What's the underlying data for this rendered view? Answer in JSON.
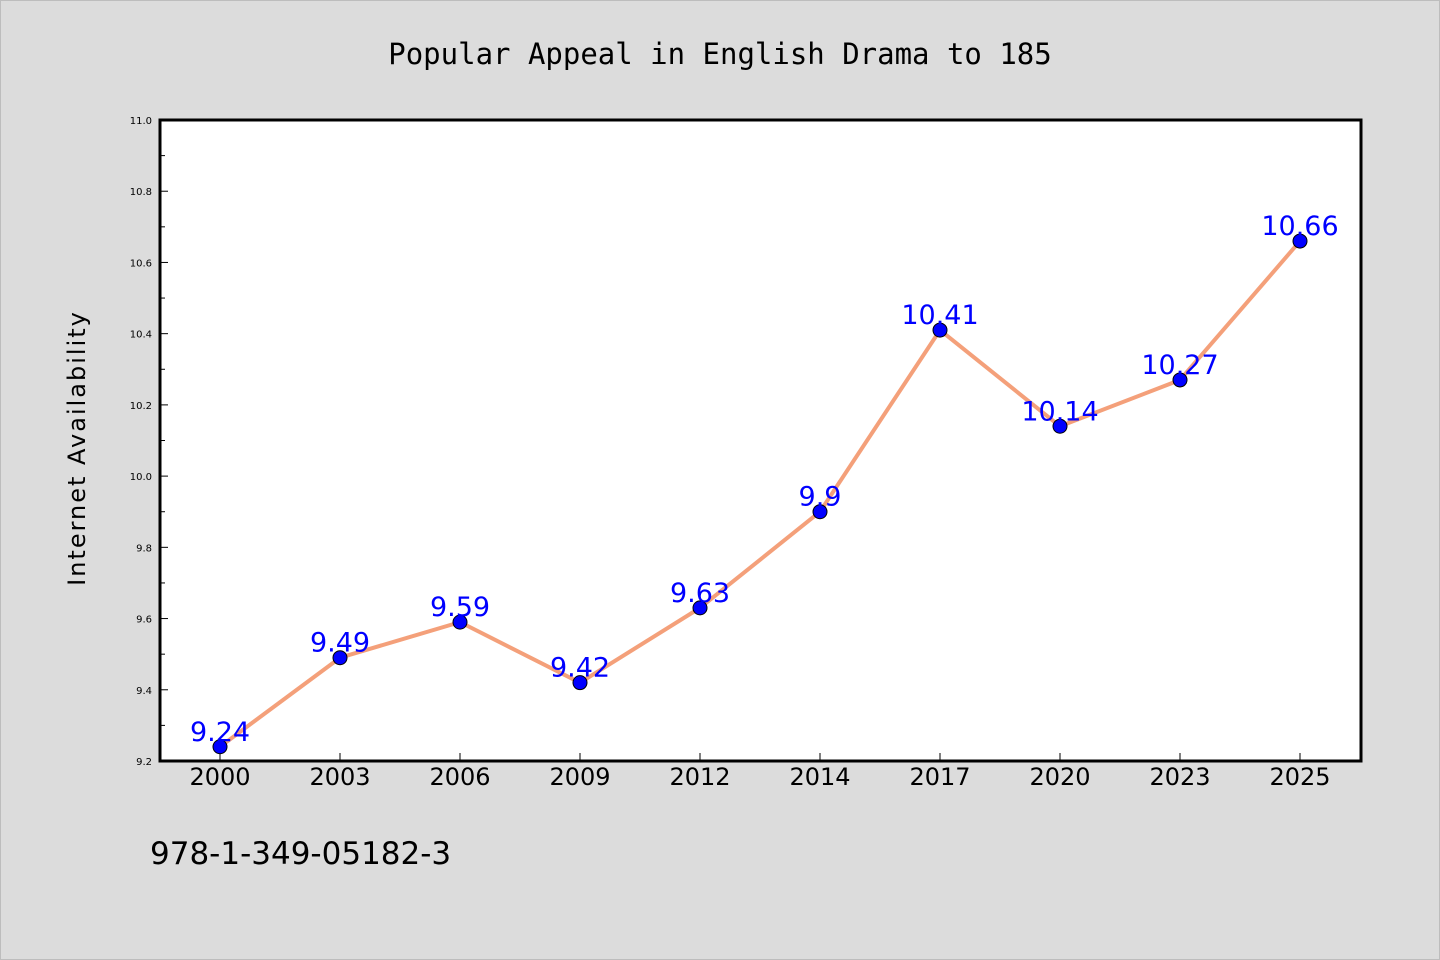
{
  "chart_data": {
    "type": "line",
    "title": "Popular Appeal in English Drama to 185",
    "xlabel": "",
    "ylabel": "Internet Availability",
    "categories": [
      "2000",
      "2003",
      "2006",
      "2009",
      "2012",
      "2014",
      "2017",
      "2020",
      "2023",
      "2025"
    ],
    "series": [
      {
        "values": [
          9.24,
          9.49,
          9.59,
          9.42,
          9.63,
          9.9,
          10.41,
          10.14,
          10.27,
          10.66
        ],
        "data_labels": [
          "9.24",
          "9.49",
          "9.59",
          "9.42",
          "9.63",
          "9.9",
          "10.41",
          "10.14",
          "10.27",
          "10.66"
        ],
        "line_color": "#f4a07a",
        "marker_color": "#0000ff"
      }
    ],
    "ylim": [
      9.2,
      11.0
    ],
    "yticks": [
      "9.2",
      "9.4",
      "9.6",
      "9.8",
      "10.0",
      "10.2",
      "10.4",
      "10.6",
      "10.8",
      "11.0"
    ],
    "grid": false,
    "legend": "none"
  },
  "footer": {
    "isbn": "978-1-349-05182-3"
  },
  "colors": {
    "background": "#dcdcdc",
    "plot_background": "#ffffff",
    "line": "#f4a07a",
    "marker": "#0000ff",
    "data_label": "#0000ff"
  }
}
